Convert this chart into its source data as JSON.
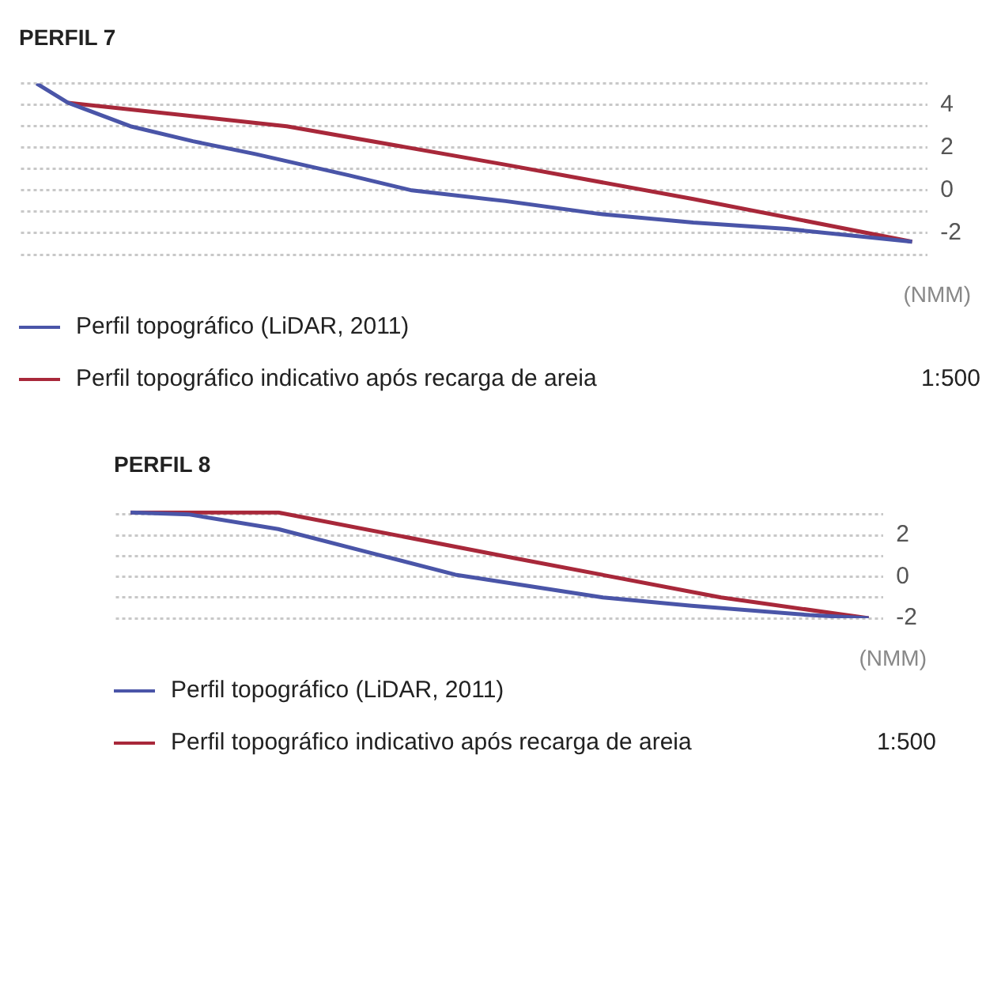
{
  "chart_data": [
    {
      "type": "line",
      "title": "PERFIL 7",
      "categories": [
        null,
        null,
        null,
        null,
        null,
        null,
        null,
        null,
        null,
        null,
        null,
        null,
        null,
        null,
        null,
        null,
        null,
        null,
        null,
        null,
        null,
        null,
        null,
        null,
        null,
        null,
        null,
        null,
        null
      ],
      "series": [
        {
          "name": "Perfil topográfico (LiDAR, 2011)",
          "color": "#4a55a8",
          "values": [
            5.0,
            4.1,
            null,
            3.0,
            null,
            2.3,
            null,
            1.7,
            null,
            null,
            0.7,
            null,
            0,
            null,
            null,
            -0.5,
            null,
            null,
            -1.1,
            null,
            null,
            -1.5,
            null,
            null,
            -1.8,
            null,
            null,
            null,
            -2.4
          ]
        },
        {
          "name": "Perfil topográfico indicativo após recarga de areia",
          "color": "#a8283a",
          "values": [
            null,
            4.1,
            null,
            null,
            null,
            null,
            null,
            null,
            3.0,
            null,
            null,
            null,
            null,
            null,
            null,
            1.2,
            null,
            null,
            null,
            null,
            null,
            -0.4,
            null,
            null,
            null,
            null,
            null,
            null,
            -2.4
          ]
        }
      ],
      "ylim": [
        -3,
        5
      ],
      "yticks": [
        {
          "value": -3,
          "label": null
        },
        -2,
        {
          "value": -1,
          "label": null
        },
        0,
        {
          "value": 1,
          "label": null
        },
        2,
        {
          "value": 3,
          "label": null
        },
        4,
        {
          "value": 5,
          "label": null
        }
      ],
      "tick_labels": "y",
      "grid": "y",
      "legend": "bottom",
      "marker": "none",
      "line_style": "solid",
      "annotations": [
        "(NMM)",
        "1:500"
      ]
    },
    {
      "type": "line",
      "title": "PERFIL 8",
      "categories": [
        null,
        null,
        null,
        null,
        null,
        null,
        null,
        null,
        null,
        null,
        null,
        null,
        null,
        null,
        null,
        null,
        null,
        null,
        null,
        null,
        null,
        null,
        null,
        null,
        null,
        null
      ],
      "series": [
        {
          "name": "Perfil topográfico (LiDAR, 2011)",
          "color": "#4a55a8",
          "values": [
            3.1,
            null,
            3.0,
            null,
            null,
            2.3,
            null,
            null,
            1.2,
            null,
            null,
            0.1,
            null,
            null,
            null,
            null,
            -1.0,
            null,
            null,
            -1.4,
            null,
            null,
            null,
            -1.85,
            null,
            -2
          ]
        },
        {
          "name": "Perfil topográfico indicativo após recarga de areia",
          "color": "#a8283a",
          "values": [
            3.1,
            null,
            null,
            null,
            null,
            3.1,
            null,
            null,
            null,
            null,
            null,
            null,
            null,
            0.9,
            null,
            null,
            null,
            null,
            null,
            null,
            -1.0,
            null,
            null,
            null,
            null,
            -2
          ]
        }
      ],
      "ylim": [
        -2,
        3.2
      ],
      "yticks": [
        -2,
        {
          "value": -1,
          "label": null
        },
        0,
        {
          "value": 1,
          "label": null
        },
        2,
        {
          "value": 3,
          "label": null
        }
      ],
      "tick_labels": "y",
      "grid": "y",
      "legend": "bottom",
      "marker": "none",
      "line_style": "solid",
      "annotations": [
        "(NMM)",
        "1:500"
      ]
    }
  ]
}
